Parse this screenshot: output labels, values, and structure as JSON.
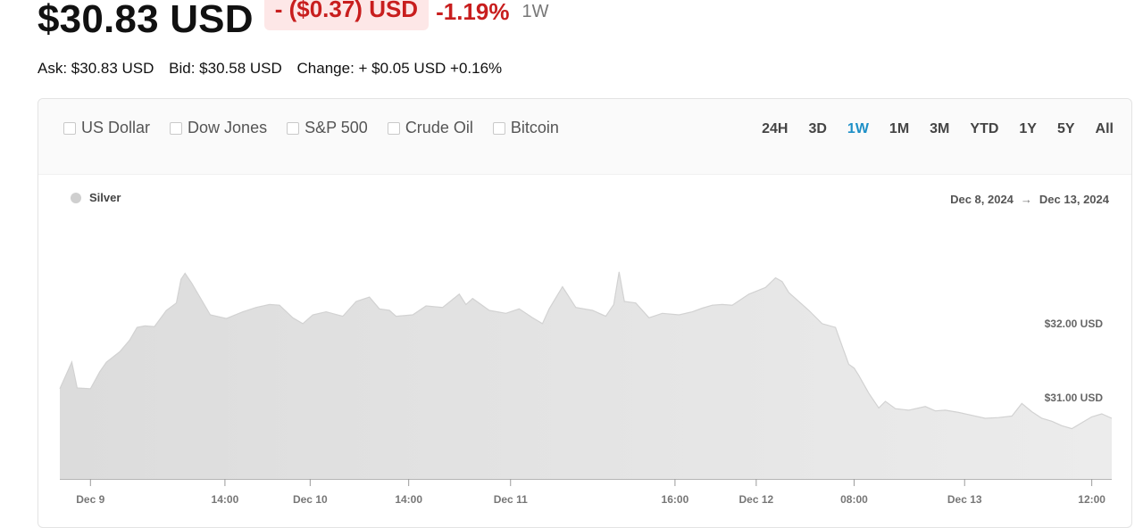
{
  "header": {
    "price": "$30.83 USD",
    "change": "- ($0.37) USD",
    "change_pct": "-1.19%",
    "period": "1W"
  },
  "quote": {
    "ask": "Ask: $30.83 USD",
    "bid": "Bid: $30.58 USD",
    "change": "Change: + $0.05 USD +0.16%"
  },
  "compare": {
    "items": [
      "US Dollar",
      "Dow Jones",
      "S&P 500",
      "Crude Oil",
      "Bitcoin"
    ]
  },
  "ranges": {
    "items": [
      "24H",
      "3D",
      "1W",
      "1M",
      "3M",
      "YTD",
      "1Y",
      "5Y",
      "All"
    ],
    "active": "1W"
  },
  "colors": {
    "accent": "#1e90c7",
    "negative": "#c81e1e",
    "negative_bg": "#fde7e7",
    "area_fill": "#e3e3e3",
    "area_line": "#d2d2d2"
  },
  "chart_data": {
    "type": "area",
    "legend": "Silver",
    "date_range": {
      "start": "Dec 8, 2024",
      "end": "Dec 13, 2024"
    },
    "y_ticks": [
      {
        "value": 32.0,
        "label": "$32.00 USD"
      },
      {
        "value": 31.0,
        "label": "$31.00 USD"
      }
    ],
    "ylim": [
      29.9,
      33.35
    ],
    "xlim": [
      0,
      158
    ],
    "x_ticks": [
      {
        "x": 4.6,
        "label": "Dec 9"
      },
      {
        "x": 24.8,
        "label": "14:00"
      },
      {
        "x": 37.6,
        "label": "Dec 10"
      },
      {
        "x": 52.4,
        "label": "14:00"
      },
      {
        "x": 67.7,
        "label": "Dec 11"
      },
      {
        "x": 92.4,
        "label": "16:00"
      },
      {
        "x": 104.6,
        "label": "Dec 12"
      },
      {
        "x": 119.3,
        "label": "08:00"
      },
      {
        "x": 135.9,
        "label": "Dec 13"
      },
      {
        "x": 155.0,
        "label": "12:00"
      }
    ],
    "series": [
      {
        "name": "Silver",
        "x": [
          0,
          1.8,
          2.6,
          4.6,
          6.0,
          7.0,
          9.0,
          10.5,
          11.6,
          12.8,
          14.2,
          16.0,
          17.5,
          18.2,
          18.8,
          19.8,
          22.6,
          25.0,
          27.5,
          29.5,
          31.5,
          33.0,
          35.0,
          36.5,
          38.0,
          40.0,
          42.5,
          44.5,
          46.5,
          48.0,
          49.5,
          50.5,
          53.0,
          55.0,
          57.5,
          60.0,
          61.0,
          62.0,
          64.5,
          67.0,
          69.0,
          71.0,
          72.5,
          73.5,
          75.5,
          77.5,
          80.0,
          82.0,
          83.2,
          84.0,
          84.8,
          86.5,
          88.5,
          90.5,
          93.0,
          95.0,
          96.5,
          98.0,
          99.5,
          101.0,
          103.5,
          106.0,
          107.5,
          108.5,
          109.5,
          112.5,
          114.5,
          116.5,
          117.5,
          118.5,
          119.3,
          120.0,
          121.5,
          123.0,
          124.0,
          125.5,
          127.5,
          130.0,
          131.5,
          133.0,
          135.0,
          137.0,
          139.0,
          141.0,
          143.0,
          144.5,
          146.0,
          147.5,
          149.0,
          150.5,
          152.0,
          153.5,
          155.0,
          156.5,
          158.0
        ],
        "y": [
          31.12,
          31.48,
          31.13,
          31.12,
          31.35,
          31.48,
          31.62,
          31.78,
          31.95,
          31.97,
          31.96,
          32.18,
          32.28,
          32.6,
          32.68,
          32.55,
          32.12,
          32.07,
          32.16,
          32.22,
          32.26,
          32.25,
          32.08,
          32.0,
          32.12,
          32.16,
          32.1,
          32.3,
          32.36,
          32.2,
          32.18,
          32.1,
          32.12,
          32.24,
          32.22,
          32.4,
          32.26,
          32.34,
          32.18,
          32.14,
          32.2,
          32.08,
          32.0,
          32.2,
          32.5,
          32.22,
          32.18,
          32.1,
          32.26,
          32.7,
          32.3,
          32.28,
          32.08,
          32.14,
          32.12,
          32.16,
          32.21,
          32.25,
          32.26,
          32.25,
          32.4,
          32.49,
          32.62,
          32.57,
          32.42,
          32.18,
          32.0,
          31.95,
          31.7,
          31.45,
          31.4,
          31.3,
          31.06,
          30.86,
          30.95,
          30.85,
          30.83,
          30.88,
          30.82,
          30.83,
          30.8,
          30.76,
          30.72,
          30.73,
          30.75,
          30.92,
          30.81,
          30.72,
          30.68,
          30.62,
          30.58,
          30.66,
          30.74,
          30.78,
          30.72
        ]
      }
    ]
  }
}
